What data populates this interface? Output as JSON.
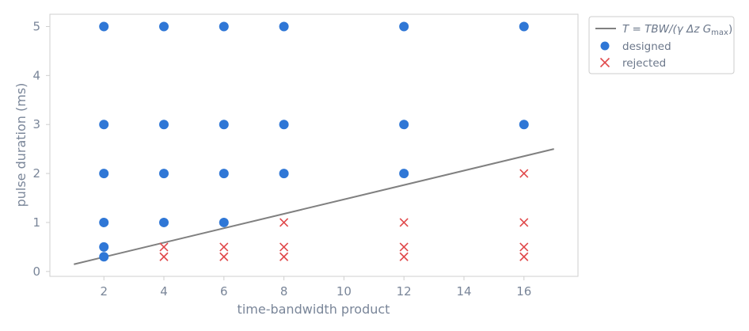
{
  "chart_data": {
    "type": "scatter",
    "xlabel": "time-bandwidth product",
    "ylabel": "pulse duration (ms)",
    "xlim": [
      0.2,
      17.8
    ],
    "ylim": [
      -0.1,
      5.25
    ],
    "xticks": [
      2,
      4,
      6,
      8,
      10,
      12,
      14,
      16
    ],
    "yticks": [
      0,
      1,
      2,
      3,
      4,
      5
    ],
    "grid": false,
    "legend_position": "outside-top-right",
    "series": [
      {
        "name": "T = TBW/(γ Δz G_max)",
        "kind": "line",
        "color": "#808080",
        "x": [
          1,
          17
        ],
        "y": [
          0.147,
          2.5
        ]
      },
      {
        "name": "designed",
        "kind": "marker",
        "marker": "circle",
        "color": "#2f77d6",
        "points": [
          [
            2,
            5
          ],
          [
            4,
            5
          ],
          [
            6,
            5
          ],
          [
            8,
            5
          ],
          [
            12,
            5
          ],
          [
            16,
            5
          ],
          [
            2,
            3
          ],
          [
            4,
            3
          ],
          [
            6,
            3
          ],
          [
            8,
            3
          ],
          [
            12,
            3
          ],
          [
            16,
            3
          ],
          [
            2,
            2
          ],
          [
            4,
            2
          ],
          [
            6,
            2
          ],
          [
            8,
            2
          ],
          [
            12,
            2
          ],
          [
            2,
            1
          ],
          [
            4,
            1
          ],
          [
            6,
            1
          ],
          [
            2,
            0.5
          ],
          [
            2,
            0.3
          ]
        ]
      },
      {
        "name": "rejected",
        "kind": "marker",
        "marker": "x",
        "color": "#e0484a",
        "points": [
          [
            4,
            0.5
          ],
          [
            4,
            0.3
          ],
          [
            6,
            0.5
          ],
          [
            6,
            0.3
          ],
          [
            8,
            1
          ],
          [
            8,
            0.5
          ],
          [
            8,
            0.3
          ],
          [
            12,
            1
          ],
          [
            12,
            0.5
          ],
          [
            12,
            0.3
          ],
          [
            16,
            2
          ],
          [
            16,
            1
          ],
          [
            16,
            0.5
          ],
          [
            16,
            0.3
          ]
        ]
      }
    ]
  },
  "legend": {
    "line_label_prefix": "T = TBW/(γ Δz G",
    "line_label_sub": "max",
    "line_label_suffix": ")",
    "designed_label": "designed",
    "rejected_label": "rejected"
  }
}
